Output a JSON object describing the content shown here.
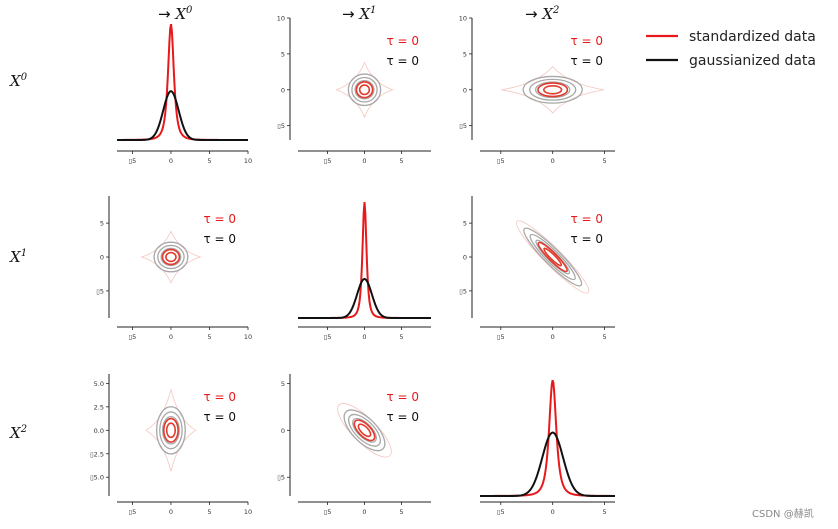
{
  "figure": {
    "column_labels": [
      {
        "arrow": "→",
        "var": "X",
        "sup": "0"
      },
      {
        "arrow": "→",
        "var": "X",
        "sup": "1"
      },
      {
        "arrow": "→",
        "var": "X",
        "sup": "2"
      }
    ],
    "row_labels": [
      {
        "var": "X",
        "sup": "0"
      },
      {
        "var": "X",
        "sup": "1"
      },
      {
        "var": "X",
        "sup": "2"
      }
    ],
    "legend": {
      "standardized_label": "standardized data",
      "gaussianized_label": "gaussianized data"
    },
    "tau_red": "τ = 0",
    "tau_black": "τ = 0",
    "watermark": "CSDN @赫凯",
    "colors": {
      "standardized": "#e8191b",
      "gaussianized": "#111111",
      "contour_grey": "#a8a8a8",
      "contour_red": "#e23b2e",
      "contour_faint": "#f4c5bd",
      "axis": "#222222"
    }
  },
  "chart_data": {
    "type": "pairplot",
    "title": "",
    "variables": [
      "X0",
      "X1",
      "X2"
    ],
    "diagonal": [
      {
        "row": 0,
        "col": 0,
        "type": "line",
        "x_range": [
          -7,
          10
        ],
        "ticks": [
          -5,
          0,
          5,
          10
        ],
        "tick_labels": [
          "▯5",
          "0",
          "5",
          "10"
        ],
        "series": [
          {
            "name": "standardized data",
            "peak": 0.95,
            "width": 0.55
          },
          {
            "name": "gaussianized data",
            "peak": 0.4,
            "width": 1.0
          }
        ]
      },
      {
        "row": 1,
        "col": 1,
        "type": "line",
        "x_range": [
          -9,
          9
        ],
        "ticks": [
          -5,
          0,
          5
        ],
        "tick_labels": [
          "▯5",
          "0",
          "5"
        ],
        "series": [
          {
            "name": "standardized data",
            "peak": 0.95,
            "width": 0.4
          },
          {
            "name": "gaussianized data",
            "peak": 0.32,
            "width": 1.0
          }
        ]
      },
      {
        "row": 2,
        "col": 2,
        "type": "line",
        "x_range": [
          -7,
          6
        ],
        "ticks": [
          -5,
          0,
          5
        ],
        "tick_labels": [
          "▯5",
          "0",
          "5"
        ],
        "series": [
          {
            "name": "standardized data",
            "peak": 0.95,
            "width": 0.5
          },
          {
            "name": "gaussianized data",
            "peak": 0.52,
            "width": 1.0
          }
        ]
      }
    ],
    "off_diagonal": [
      {
        "row": 0,
        "col": 1,
        "type": "contour",
        "x_range": [
          -9,
          9
        ],
        "y_range": [
          -7,
          10
        ],
        "xticks": [
          -5,
          0,
          5
        ],
        "xtick_labels": [
          "▯5",
          "0",
          "5"
        ],
        "yticks": [
          10,
          5,
          0,
          -5
        ],
        "ytick_labels": [
          "10",
          "5",
          "0",
          "▯5"
        ],
        "correlation": 0.0,
        "cx": 0,
        "cy": 0,
        "sx": 1.0,
        "sy": 1.0
      },
      {
        "row": 0,
        "col": 2,
        "type": "contour",
        "x_range": [
          -7,
          6
        ],
        "y_range": [
          -7,
          10
        ],
        "xticks": [
          -5,
          0,
          5
        ],
        "xtick_labels": [
          "▯5",
          "0",
          "5"
        ],
        "yticks": [
          10,
          5,
          0,
          -5
        ],
        "ytick_labels": [
          "10",
          "5",
          "0",
          "▯5"
        ],
        "correlation": 0.0,
        "cx": 0,
        "cy": 0,
        "sx": 1.3,
        "sy": 0.85
      },
      {
        "row": 1,
        "col": 0,
        "type": "contour",
        "x_range": [
          -7,
          10
        ],
        "y_range": [
          -9,
          9
        ],
        "xticks": [
          -5,
          0,
          5,
          10
        ],
        "xtick_labels": [
          "▯5",
          "0",
          "5",
          "10"
        ],
        "yticks": [
          5,
          0,
          -5
        ],
        "ytick_labels": [
          "5",
          "0",
          "▯5"
        ],
        "correlation": 0.0,
        "cx": 0,
        "cy": 0,
        "sx": 1.0,
        "sy": 1.0
      },
      {
        "row": 1,
        "col": 2,
        "type": "contour",
        "x_range": [
          -7,
          6
        ],
        "y_range": [
          -9,
          9
        ],
        "xticks": [
          -5,
          0,
          5
        ],
        "xtick_labels": [
          "▯5",
          "0",
          "5"
        ],
        "yticks": [
          5,
          0,
          -5
        ],
        "ytick_labels": [
          "5",
          "0",
          "▯5"
        ],
        "correlation": -0.7,
        "cx": 0,
        "cy": 0,
        "sx": 1.2,
        "sy": 1.2
      },
      {
        "row": 2,
        "col": 0,
        "type": "contour",
        "x_range": [
          -7,
          10
        ],
        "y_range": [
          -7,
          6
        ],
        "xticks": [
          -5,
          0,
          5,
          10
        ],
        "xtick_labels": [
          "▯5",
          "0",
          "5",
          "10"
        ],
        "yticks": [
          5,
          2.5,
          0,
          -2.5,
          -5
        ],
        "ytick_labels": [
          "5.0",
          "2.5",
          "0.0",
          "▯2.5",
          "▯5.0"
        ],
        "correlation": 0.0,
        "cx": 0,
        "cy": 0,
        "sx": 0.85,
        "sy": 1.15
      },
      {
        "row": 2,
        "col": 1,
        "type": "contour",
        "x_range": [
          -9,
          9
        ],
        "y_range": [
          -7,
          6
        ],
        "xticks": [
          -5,
          0,
          5
        ],
        "xtick_labels": [
          "▯5",
          "0",
          "5"
        ],
        "yticks": [
          5,
          0,
          -5
        ],
        "ytick_labels": [
          "5",
          "0",
          "▯5"
        ],
        "correlation": -0.7,
        "cx": 0,
        "cy": 0,
        "sx": 1.1,
        "sy": 1.3
      }
    ]
  }
}
